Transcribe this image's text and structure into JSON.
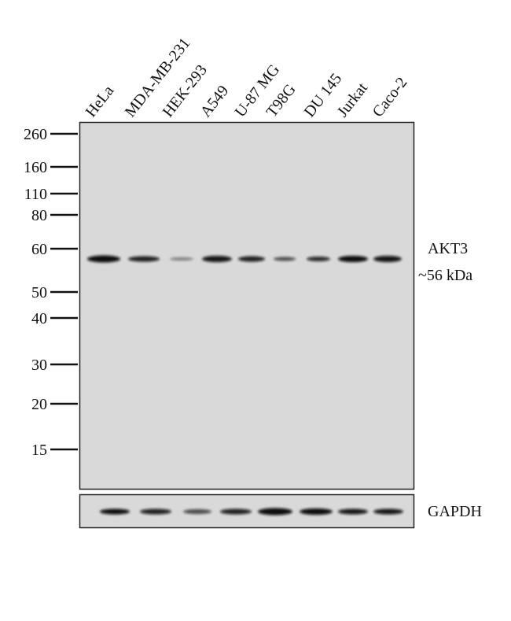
{
  "lanes": [
    "HeLa",
    "MDA-MB-231",
    "HEK-293",
    "A549",
    "U-87 MG",
    "T98G",
    "DU 145",
    "Jurkat",
    "Caco-2"
  ],
  "markers": [
    260,
    160,
    110,
    80,
    60,
    50,
    40,
    30,
    20,
    15
  ],
  "target": {
    "name": "AKT3",
    "size": "~56 kDa"
  },
  "control": {
    "name": "GAPDH"
  }
}
